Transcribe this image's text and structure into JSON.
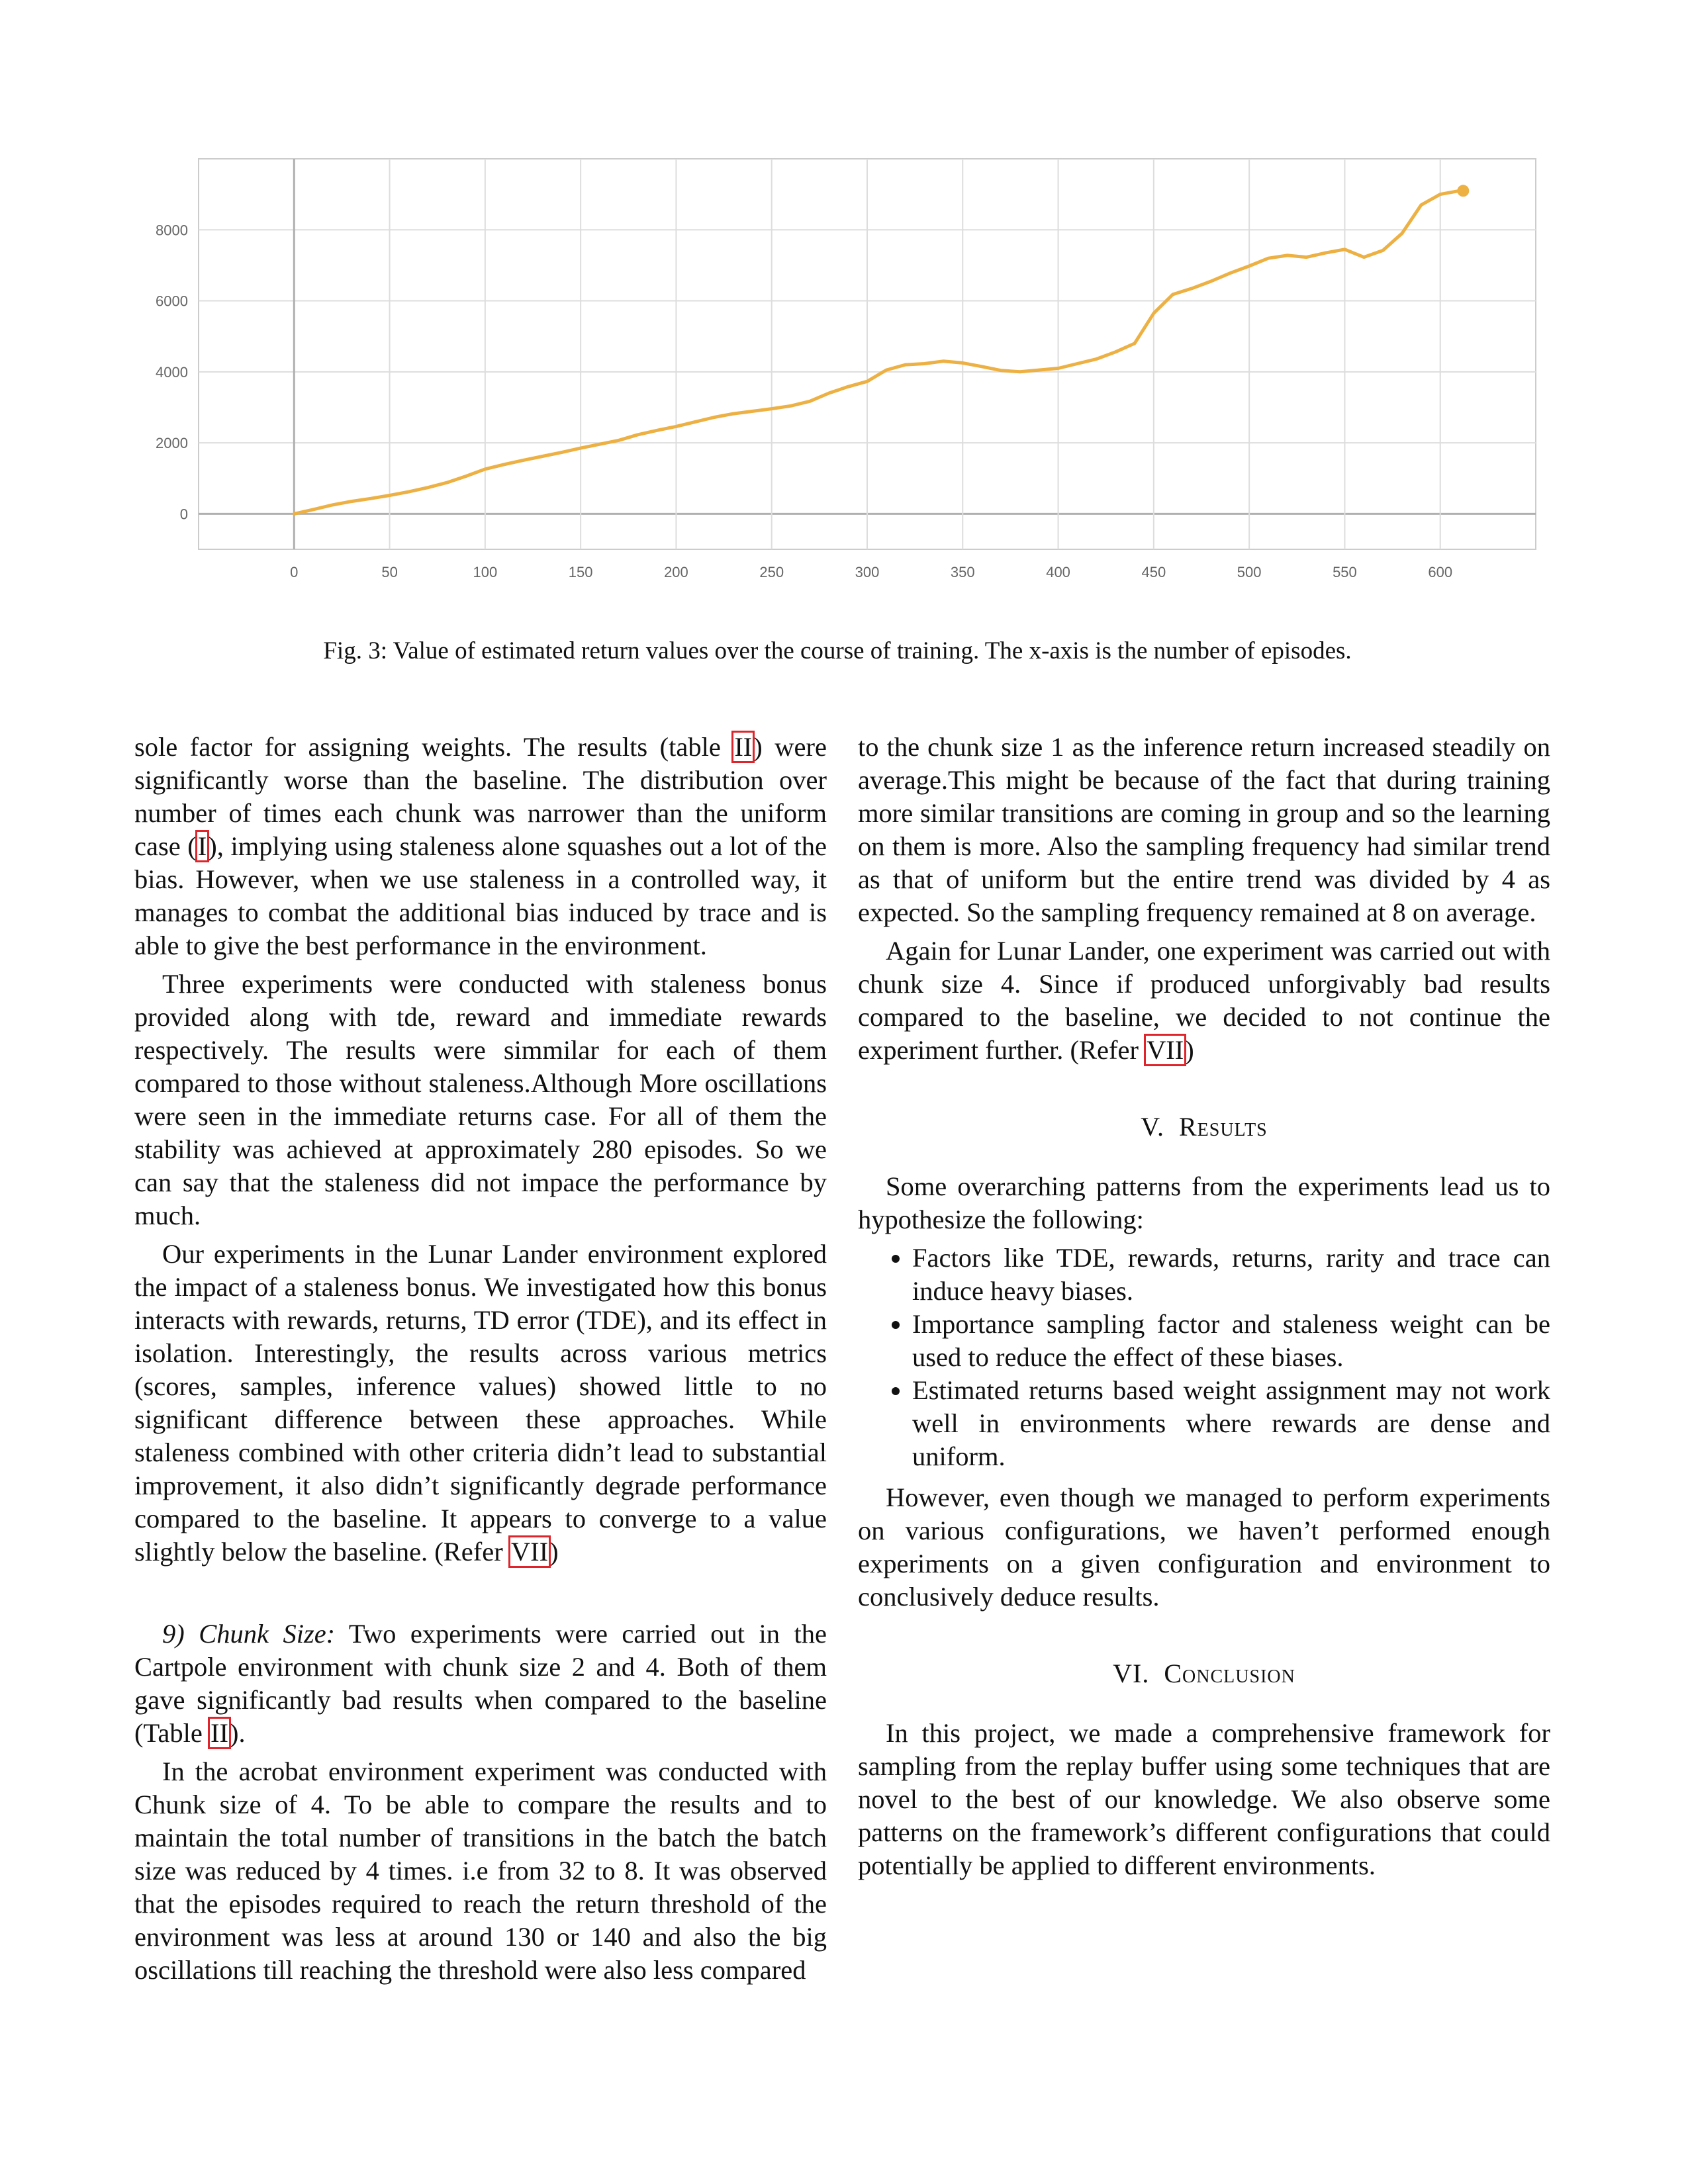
{
  "chart_data": {
    "type": "line",
    "title": "",
    "xlabel": "",
    "ylabel": "",
    "xlim": [
      -50,
      650
    ],
    "ylim": [
      -1000,
      10000
    ],
    "x_ticks": [
      0,
      50,
      100,
      150,
      200,
      250,
      300,
      350,
      400,
      450,
      500,
      550,
      600
    ],
    "y_ticks": [
      0,
      2000,
      4000,
      6000,
      8000
    ],
    "grid": true,
    "color": "#EDB042",
    "series": [
      {
        "x": [
          0,
          10,
          20,
          30,
          40,
          50,
          60,
          70,
          80,
          90,
          100,
          110,
          120,
          130,
          140,
          150,
          160,
          170,
          180,
          190,
          200,
          210,
          220,
          230,
          240,
          250,
          260,
          270,
          280,
          290,
          300,
          310,
          320,
          330,
          340,
          350,
          360,
          370,
          380,
          390,
          400,
          410,
          420,
          430,
          440,
          450,
          460,
          470,
          480,
          490,
          500,
          510,
          520,
          530,
          540,
          550,
          560,
          570,
          580,
          590,
          600,
          610,
          612
        ],
        "y": [
          0,
          120,
          250,
          350,
          430,
          520,
          620,
          740,
          880,
          1060,
          1260,
          1390,
          1510,
          1620,
          1730,
          1850,
          1960,
          2070,
          2230,
          2350,
          2460,
          2590,
          2720,
          2820,
          2890,
          2960,
          3040,
          3170,
          3400,
          3580,
          3730,
          4050,
          4200,
          4230,
          4300,
          4250,
          4150,
          4040,
          4000,
          4050,
          4100,
          4230,
          4360,
          4560,
          4800,
          5650,
          6180,
          6350,
          6550,
          6780,
          6980,
          7200,
          7280,
          7230,
          7350,
          7450,
          7230,
          7420,
          7900,
          8700,
          9000,
          9100,
          9100
        ]
      }
    ]
  },
  "caption": "Fig. 3: Value of estimated return values over the course of training. The x-axis is the number of episodes.",
  "left": {
    "p1": {
      "a": "sole factor for assigning weights. The results (table ",
      "ref1": "II",
      "b": ") were significantly worse than the baseline. The distribution over number of times each chunk was narrower than the uniform case (",
      "ref2": "I",
      "c": "), implying using staleness alone squashes out a lot of the bias. However, when we use staleness in a controlled way, it manages to combat the additional bias induced by trace and is able to give the best performance in the environment."
    },
    "p2": "Three experiments were conducted with staleness bonus provided along with tde, reward and immediate rewards respectively. The results were simmilar for each of them compared to those without staleness.Although More oscillations were seen in the immediate returns case. For all of them the stability was achieved at approximately 280 episodes. So we can say that the staleness did not impace the performance by much.",
    "p3": {
      "a": "Our experiments in the Lunar Lander environment explored the impact of a staleness bonus. We investigated how this bonus interacts with rewards, returns, TD error (TDE), and its effect in isolation. Interestingly, the results across various metrics (scores, samples, inference values) showed little to no significant difference between these approaches. While staleness combined with other criteria didn’t lead to substantial improvement, it also didn’t significantly degrade performance compared to the baseline. It appears to converge to a value slightly below the baseline. (Refer ",
      "ref": "VII",
      "b": ")"
    },
    "p4": {
      "title": "9) Chunk Size:",
      "a": " Two experiments were carried out in the Cartpole environment with chunk size 2 and 4. Both of them gave significantly bad results when compared to the baseline (Table ",
      "ref": "II",
      "b": ")."
    },
    "p5": "In the acrobat environment experiment was conducted with Chunk size of 4. To be able to compare the results and to maintain the total number of transitions in the batch the batch size was reduced by 4 times. i.e from 32 to 8. It was observed that the episodes required to reach the return threshold of the environment was less at around 130 or 140 and also the big oscillations till reaching the threshold were also less compared"
  },
  "right": {
    "p1": "to the chunk size 1 as the inference return increased steadily on average.This might be because of the fact that during training more similar transitions are coming in group and so the learning on them is more. Also the sampling frequency had similar trend as that of uniform but the entire trend was divided by 4 as expected. So the sampling frequency remained at 8 on average.",
    "p2": {
      "a": "Again for Lunar Lander, one experiment was carried out with chunk size 4. Since if produced unforgivably bad results compared to the baseline, we decided to not continue the experiment further. (Refer ",
      "ref": "VII",
      "b": ")"
    },
    "sec5": {
      "num": "V.",
      "title": "Results"
    },
    "p3": "Some overarching patterns from the experiments lead us to hypothesize the following:",
    "bullets": [
      "Factors like TDE, rewards, returns, rarity and trace can induce heavy biases.",
      "Importance sampling factor and staleness weight can be used to reduce the effect of these biases.",
      "Estimated returns based weight assignment may not work well in environments where rewards are dense and uniform."
    ],
    "p4": "However, even though we managed to perform experiments on various configurations, we haven’t performed enough experiments on a given configuration and environment to conclusively deduce results.",
    "sec6": {
      "num": "VI.",
      "title": "Conclusion"
    },
    "p5": "In this project, we made a comprehensive framework for sampling from the replay buffer using some techniques that are novel to the best of our knowledge. We also observe some patterns on the framework’s different configurations that could potentially be applied to different environments."
  }
}
